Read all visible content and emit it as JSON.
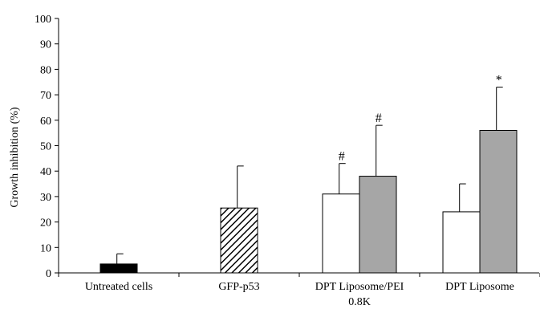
{
  "chart_data": {
    "type": "bar",
    "title": "",
    "xlabel": "",
    "ylabel": "Growth inhibition (%)",
    "ylim": [
      0,
      100
    ],
    "yticks": [
      0,
      10,
      20,
      30,
      40,
      50,
      60,
      70,
      80,
      90,
      100
    ],
    "grid": false,
    "categories": [
      {
        "label_lines": [
          "Untreated cells"
        ]
      },
      {
        "label_lines": [
          "GFP-p53"
        ]
      },
      {
        "label_lines": [
          "DPT Liposome/PEI",
          "0.8K"
        ]
      },
      {
        "label_lines": [
          "DPT Liposome"
        ]
      }
    ],
    "bars": [
      {
        "category": 0,
        "slot": "center",
        "fill": "black",
        "value": 3.5,
        "error": 4,
        "annotation": ""
      },
      {
        "category": 1,
        "slot": "center",
        "fill": "hatched",
        "value": 25.5,
        "error": 16.5,
        "annotation": ""
      },
      {
        "category": 2,
        "slot": "left",
        "fill": "white",
        "value": 31,
        "error": 12,
        "annotation": "#"
      },
      {
        "category": 2,
        "slot": "right",
        "fill": "gray",
        "value": 38,
        "error": 20,
        "annotation": "#"
      },
      {
        "category": 3,
        "slot": "left",
        "fill": "white",
        "value": 24,
        "error": 11,
        "annotation": ""
      },
      {
        "category": 3,
        "slot": "right",
        "fill": "gray",
        "value": 56,
        "error": 17,
        "annotation": "*"
      }
    ],
    "colors": {
      "black": "#000000",
      "white": "#ffffff",
      "gray": "#a6a6a6",
      "hatched": "#000000",
      "stroke": "#000000"
    }
  }
}
